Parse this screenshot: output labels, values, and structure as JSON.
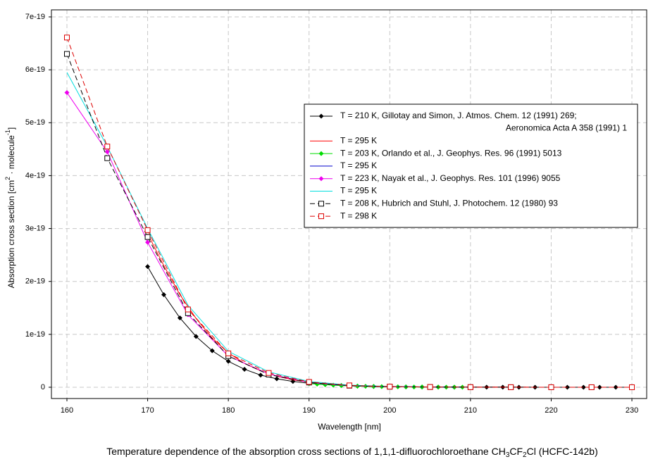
{
  "chart_data": {
    "type": "line",
    "caption": [
      "Temperature dependence of the absorption cross sections of 1,1,1-difluorochloroethane CH",
      "3",
      "CF",
      "2",
      "Cl (HCFC-142b)"
    ],
    "xlabel": "Wavelength [nm]",
    "ylabel": [
      "Absorption cross section [cm",
      "2",
      " · molecule",
      "-1",
      "]"
    ],
    "xlim": [
      158.08,
      231.83
    ],
    "ylim": [
      -2.13e-20,
      7.133e-19
    ],
    "xticks": [
      160,
      170,
      180,
      190,
      200,
      210,
      220,
      230
    ],
    "yticks": [
      0,
      1e-19,
      2e-19,
      3e-19,
      4e-19,
      5e-19,
      6e-19,
      7e-19
    ],
    "grid": true,
    "legend": "right",
    "series": [
      {
        "name": [
          "T = 210 K, Gillotay and Simon, J. Atmos. Chem. 12 (1991) 269;",
          "Aeronomica Acta A 358 (1991) 1"
        ],
        "color": "#000000",
        "marker": "diamond",
        "dash": false,
        "x": [
          170,
          172,
          174,
          176,
          178,
          180,
          182,
          184,
          186,
          188,
          190,
          192,
          194,
          196,
          198,
          200,
          202,
          204,
          206,
          208,
          210,
          212,
          214,
          216,
          218,
          220,
          222,
          224,
          226,
          228,
          230
        ],
        "values": [
          2.28e-19,
          1.75e-19,
          1.31e-19,
          9.6e-20,
          6.9e-20,
          4.9e-20,
          3.4e-20,
          2.3e-20,
          1.6e-20,
          1.1e-20,
          7.5e-21,
          5e-21,
          3.3e-21,
          2.2e-21,
          1.5e-21,
          1e-21,
          7e-22,
          5e-22,
          3e-22,
          2e-22,
          1.5e-22,
          1e-22,
          8e-23,
          6e-23,
          5e-23,
          4e-23,
          3e-23,
          2e-23,
          2e-23,
          1e-23,
          1e-23
        ]
      },
      {
        "name": "T = 295 K",
        "color": "#ff0000",
        "marker": null,
        "dash": false,
        "x": [
          170,
          172,
          174,
          176,
          178,
          180,
          182,
          184,
          186,
          188,
          190,
          192,
          194,
          196,
          198,
          200,
          202,
          204,
          206,
          208,
          210,
          212,
          214,
          216,
          218,
          220,
          222,
          224,
          226,
          228,
          230
        ],
        "values": [
          2.9e-19,
          2.3e-19,
          1.75e-19,
          1.3e-19,
          9.3e-20,
          6.5e-20,
          4.5e-20,
          3.1e-20,
          2.1e-20,
          1.4e-20,
          9.5e-21,
          6.5e-21,
          4.3e-21,
          2.9e-21,
          2e-21,
          1.3e-21,
          9e-22,
          6e-22,
          4e-22,
          3e-22,
          2e-22,
          1.5e-22,
          1e-22,
          8e-23,
          6e-23,
          5e-23,
          4e-23,
          3e-23,
          2e-23,
          2e-23,
          1e-23
        ]
      },
      {
        "name": "T = 203 K, Orlando et al., J. Geophys. Res. 96 (1991) 5013",
        "color": "#00dd00",
        "marker": "diamond",
        "dash": false,
        "x": [
          190,
          191,
          192,
          193,
          194,
          195,
          196,
          197,
          198,
          199,
          200,
          201,
          202,
          203,
          204,
          205,
          206,
          207,
          208,
          209,
          210
        ],
        "values": [
          7e-21,
          5.8e-21,
          4.8e-21,
          4e-21,
          3.3e-21,
          2.7e-21,
          2.2e-21,
          1.8e-21,
          1.5e-21,
          1.2e-21,
          1e-21,
          8e-22,
          6.5e-22,
          5.3e-22,
          4.3e-22,
          3.5e-22,
          2.8e-22,
          2.3e-22,
          1.9e-22,
          1.5e-22,
          1.2e-22
        ]
      },
      {
        "name": "T = 295 K",
        "color": "#0000cc",
        "marker": null,
        "dash": false,
        "x": [
          190,
          192,
          194,
          196,
          198,
          200,
          202,
          204,
          206,
          208,
          210
        ],
        "values": [
          9e-21,
          6.3e-21,
          4.3e-21,
          2.9e-21,
          2e-21,
          1.4e-21,
          9.5e-22,
          6.5e-22,
          4.5e-22,
          3e-22,
          2e-22
        ]
      },
      {
        "name": "T = 223 K, Nayak et al., J. Geophys. Res. 101 (1996) 9055",
        "color": "#ee00ee",
        "marker": "diamond",
        "dash": false,
        "x": [
          160,
          165,
          170,
          175,
          180,
          185,
          190,
          195,
          200,
          205
        ],
        "values": [
          5.57e-19,
          4.45e-19,
          2.74e-19,
          1.37e-19,
          5.9e-20,
          2.5e-20,
          9e-21,
          3e-21,
          1e-21,
          5e-22
        ]
      },
      {
        "name": "T = 295 K",
        "color": "#00dddd",
        "marker": null,
        "dash": false,
        "x": [
          160,
          165,
          170,
          175,
          180,
          185,
          190,
          195,
          200,
          205
        ],
        "values": [
          5.95e-19,
          4.55e-19,
          3e-19,
          1.55e-19,
          6.8e-20,
          2.9e-20,
          1.1e-20,
          4e-21,
          1.5e-21,
          5e-22
        ]
      },
      {
        "name": "T = 208 K, Hubrich and Stuhl, J. Photochem. 12 (1980) 93",
        "color": "#000000",
        "marker": "square",
        "dash": true,
        "x": [
          160,
          165,
          170,
          175,
          180,
          185,
          190,
          195,
          200,
          205,
          210,
          215,
          220,
          225,
          230
        ],
        "values": [
          6.3e-19,
          4.33e-19,
          2.84e-19,
          1.4e-19,
          5.9e-20,
          2.4e-20,
          9e-21,
          3e-21,
          1e-21,
          4e-22,
          2e-22,
          1e-22,
          5e-23,
          3e-23,
          2e-23
        ]
      },
      {
        "name": "T = 298 K",
        "color": "#dd0000",
        "marker": "square",
        "dash": true,
        "x": [
          160,
          165,
          170,
          175,
          180,
          185,
          190,
          195,
          200,
          205,
          210,
          215,
          220,
          225,
          230
        ],
        "values": [
          6.61e-19,
          4.55e-19,
          2.97e-19,
          1.47e-19,
          6.4e-20,
          2.7e-20,
          1e-20,
          3.5e-21,
          1.2e-21,
          5e-22,
          2e-22,
          1e-22,
          5e-23,
          3e-23,
          2e-23
        ]
      }
    ]
  }
}
